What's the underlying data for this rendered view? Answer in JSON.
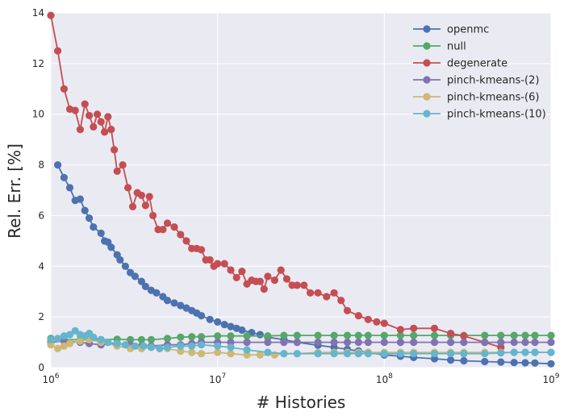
{
  "chart_data": {
    "type": "line",
    "title": "",
    "xlabel": "# Histories",
    "ylabel": "Rel. Err. [%]",
    "xscale": "log",
    "xlim": [
      1000000,
      1000000000
    ],
    "ylim": [
      0,
      14
    ],
    "xticks": [
      {
        "value": 1000000,
        "base": "10",
        "exp": "6"
      },
      {
        "value": 10000000,
        "base": "10",
        "exp": "7"
      },
      {
        "value": 100000000,
        "base": "10",
        "exp": "8"
      },
      {
        "value": 1000000000,
        "base": "10",
        "exp": "9"
      }
    ],
    "yticks": [
      0,
      2,
      4,
      6,
      8,
      10,
      12,
      14
    ],
    "grid": true,
    "legend_position": "top-right",
    "markers": "circle",
    "series": [
      {
        "name": "openmc",
        "color": "#4c72b0",
        "x": [
          1100000,
          1200000,
          1300000,
          1400000,
          1500000,
          1600000,
          1700000,
          1800000,
          2000000,
          2100000,
          2200000,
          2300000,
          2500000,
          2600000,
          2800000,
          3000000,
          3200000,
          3500000,
          3700000,
          4000000,
          4300000,
          4700000,
          5000000,
          5500000,
          6000000,
          6500000,
          7000000,
          7500000,
          8000000,
          9000000,
          10000000,
          11000000,
          12000000,
          13000000,
          14000000,
          16000000,
          18000000,
          20000000,
          25000000,
          30000000,
          40000000,
          50000000,
          60000000,
          70000000,
          80000000,
          100000000,
          125000000,
          150000000,
          200000000,
          250000000,
          300000000,
          400000000,
          500000000,
          600000000,
          700000000,
          800000000,
          1000000000
        ],
        "y": [
          8.0,
          7.5,
          7.1,
          6.6,
          6.65,
          6.2,
          5.9,
          5.55,
          5.3,
          5.0,
          4.95,
          4.75,
          4.45,
          4.25,
          4.0,
          3.75,
          3.6,
          3.4,
          3.2,
          3.05,
          2.95,
          2.8,
          2.65,
          2.55,
          2.45,
          2.35,
          2.25,
          2.15,
          2.05,
          1.9,
          1.8,
          1.7,
          1.62,
          1.55,
          1.48,
          1.38,
          1.3,
          1.2,
          1.1,
          1.0,
          0.88,
          0.8,
          0.72,
          0.66,
          0.6,
          0.5,
          0.45,
          0.4,
          0.35,
          0.3,
          0.27,
          0.24,
          0.22,
          0.2,
          0.19,
          0.18,
          0.15
        ]
      },
      {
        "name": "null",
        "color": "#55a868",
        "x": [
          1000000,
          1200000,
          1500000,
          2000000,
          2500000,
          3000000,
          3500000,
          4000000,
          5000000,
          6000000,
          7000000,
          8000000,
          10000000,
          12000000,
          15000000,
          20000000,
          25000000,
          30000000,
          40000000,
          50000000,
          60000000,
          70000000,
          80000000,
          100000000,
          125000000,
          150000000,
          200000000,
          250000000,
          300000000,
          400000000,
          500000000,
          600000000,
          700000000,
          800000000,
          1000000000
        ],
        "y": [
          1.15,
          1.1,
          1.1,
          1.1,
          1.12,
          1.1,
          1.1,
          1.1,
          1.15,
          1.2,
          1.22,
          1.22,
          1.25,
          1.25,
          1.25,
          1.25,
          1.27,
          1.27,
          1.27,
          1.27,
          1.27,
          1.27,
          1.27,
          1.27,
          1.27,
          1.27,
          1.27,
          1.27,
          1.27,
          1.27,
          1.27,
          1.27,
          1.27,
          1.27,
          1.27
        ]
      },
      {
        "name": "degenerate",
        "color": "#c44e52",
        "x": [
          1000000,
          1100000,
          1200000,
          1300000,
          1400000,
          1500000,
          1600000,
          1700000,
          1800000,
          1900000,
          2000000,
          2100000,
          2200000,
          2300000,
          2400000,
          2500000,
          2700000,
          2900000,
          3100000,
          3300000,
          3500000,
          3700000,
          3900000,
          4100000,
          4400000,
          4700000,
          5000000,
          5500000,
          6000000,
          6500000,
          7000000,
          7500000,
          8000000,
          8500000,
          9000000,
          9500000,
          10000000,
          11000000,
          12000000,
          13000000,
          14000000,
          15000000,
          16000000,
          17000000,
          18000000,
          19000000,
          20000000,
          22000000,
          24000000,
          26000000,
          28000000,
          30000000,
          33000000,
          36000000,
          40000000,
          45000000,
          50000000,
          55000000,
          60000000,
          70000000,
          80000000,
          90000000,
          100000000,
          125000000,
          150000000,
          200000000,
          250000000,
          300000000,
          400000000,
          500000000
        ],
        "y": [
          13.9,
          12.5,
          11.0,
          10.2,
          10.15,
          9.4,
          10.4,
          9.95,
          9.5,
          10.0,
          9.7,
          9.3,
          9.9,
          9.4,
          8.6,
          7.75,
          8.0,
          7.1,
          6.35,
          6.9,
          6.8,
          6.4,
          6.75,
          6.0,
          5.45,
          5.45,
          5.7,
          5.55,
          5.25,
          5.0,
          4.7,
          4.7,
          4.65,
          4.25,
          4.25,
          4.0,
          4.1,
          4.1,
          3.85,
          3.55,
          3.8,
          3.3,
          3.45,
          3.4,
          3.4,
          3.1,
          3.6,
          3.45,
          3.85,
          3.5,
          3.25,
          3.25,
          3.25,
          2.95,
          2.95,
          2.8,
          2.95,
          2.65,
          2.25,
          2.05,
          1.9,
          1.8,
          1.75,
          1.5,
          1.55,
          1.55,
          1.35,
          1.25,
          1.0,
          0.8
        ]
      },
      {
        "name": "pinch-kmeans-(2)",
        "color": "#8172b2",
        "x": [
          1000000,
          1200000,
          1500000,
          1700000,
          2000000,
          2500000,
          3000000,
          3500000,
          4000000,
          5000000,
          6000000,
          7000000,
          8000000,
          10000000,
          12000000,
          15000000,
          20000000,
          25000000,
          30000000,
          40000000,
          50000000,
          60000000,
          70000000,
          80000000,
          100000000,
          125000000,
          150000000,
          200000000,
          250000000,
          300000000,
          400000000,
          500000000,
          600000000,
          700000000,
          800000000,
          1000000000
        ],
        "y": [
          1.0,
          1.05,
          1.0,
          0.95,
          0.9,
          0.95,
          0.9,
          0.85,
          0.85,
          0.9,
          0.9,
          0.95,
          1.0,
          1.0,
          1.0,
          1.0,
          1.0,
          1.0,
          1.0,
          1.0,
          1.0,
          1.0,
          1.0,
          1.0,
          1.0,
          1.0,
          1.0,
          1.0,
          1.0,
          1.0,
          1.0,
          1.0,
          1.0,
          1.0,
          1.0,
          1.0
        ]
      },
      {
        "name": "pinch-kmeans-(6)",
        "color": "#ccb974",
        "x": [
          1000000,
          1100000,
          1200000,
          1300000,
          1500000,
          1700000,
          2000000,
          2500000,
          3000000,
          3500000,
          4000000,
          5000000,
          6000000,
          7000000,
          8000000,
          10000000,
          12000000,
          15000000,
          18000000,
          22000000,
          25000000,
          30000000,
          40000000,
          50000000,
          60000000,
          70000000,
          80000000,
          100000000,
          125000000,
          150000000,
          200000000,
          250000000,
          300000000,
          400000000,
          500000000,
          600000000,
          700000000,
          800000000,
          1000000000
        ],
        "y": [
          0.9,
          0.75,
          0.85,
          0.95,
          1.05,
          1.1,
          1.0,
          0.85,
          0.75,
          0.75,
          0.8,
          0.75,
          0.65,
          0.6,
          0.55,
          0.6,
          0.55,
          0.5,
          0.5,
          0.5,
          0.55,
          0.55,
          0.6,
          0.6,
          0.6,
          0.6,
          0.6,
          0.6,
          0.6,
          0.6,
          0.6,
          0.6,
          0.6,
          0.6,
          0.6,
          0.6,
          0.6,
          0.6,
          0.6
        ]
      },
      {
        "name": "pinch-kmeans-(10)",
        "color": "#64b5cd",
        "x": [
          1000000,
          1100000,
          1200000,
          1300000,
          1400000,
          1500000,
          1600000,
          1700000,
          1800000,
          2000000,
          2200000,
          2500000,
          2800000,
          3200000,
          3600000,
          4000000,
          4500000,
          5000000,
          6000000,
          7000000,
          8000000,
          10000000,
          12000000,
          15000000,
          20000000,
          25000000,
          30000000,
          40000000,
          50000000,
          60000000,
          70000000,
          80000000,
          100000000,
          125000000,
          150000000,
          200000000,
          250000000,
          300000000,
          400000000,
          500000000,
          600000000,
          700000000,
          800000000,
          1000000000
        ],
        "y": [
          1.1,
          1.15,
          1.25,
          1.3,
          1.45,
          1.3,
          1.25,
          1.35,
          1.2,
          1.1,
          1.0,
          0.95,
          0.9,
          0.85,
          0.85,
          0.8,
          0.75,
          0.8,
          0.85,
          0.85,
          0.9,
          0.85,
          0.8,
          0.7,
          0.6,
          0.55,
          0.55,
          0.55,
          0.55,
          0.55,
          0.55,
          0.55,
          0.55,
          0.55,
          0.55,
          0.55,
          0.55,
          0.55,
          0.55,
          0.58,
          0.6,
          0.6,
          0.6,
          0.6
        ]
      }
    ]
  }
}
